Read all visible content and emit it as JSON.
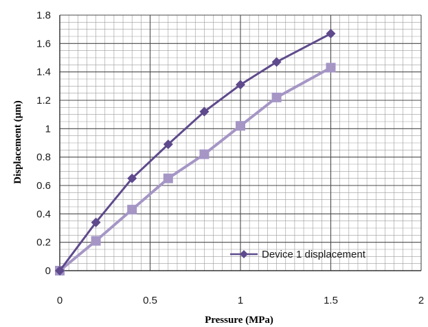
{
  "chart_data": {
    "type": "line",
    "xlabel": "Pressure (MPa)",
    "ylabel": "Displacement (µm)",
    "xlim": [
      0,
      2
    ],
    "ylim": [
      0,
      1.8
    ],
    "x_ticks": [
      "0",
      "0.5",
      "1",
      "1.5",
      "2"
    ],
    "y_ticks": [
      "0",
      "0.2",
      "0.4",
      "0.6",
      "0.8",
      "1",
      "1.2",
      "1.4",
      "1.6",
      "1.8"
    ],
    "grid": "on",
    "legend_position": "bottom-right",
    "series": [
      {
        "name": "Device 1 displacement",
        "marker": "diamond",
        "color": "#5e4a8c",
        "x": [
          0,
          0.2,
          0.4,
          0.6,
          0.8,
          1.0,
          1.2,
          1.5
        ],
        "y": [
          0,
          0.34,
          0.65,
          0.89,
          1.12,
          1.31,
          1.47,
          1.67
        ]
      },
      {
        "name": "",
        "marker": "square",
        "color": "#a596c6",
        "x": [
          0,
          0.2,
          0.4,
          0.6,
          0.8,
          1.0,
          1.2,
          1.5
        ],
        "y": [
          0,
          0.21,
          0.43,
          0.65,
          0.82,
          1.02,
          1.22,
          1.43
        ]
      }
    ]
  }
}
